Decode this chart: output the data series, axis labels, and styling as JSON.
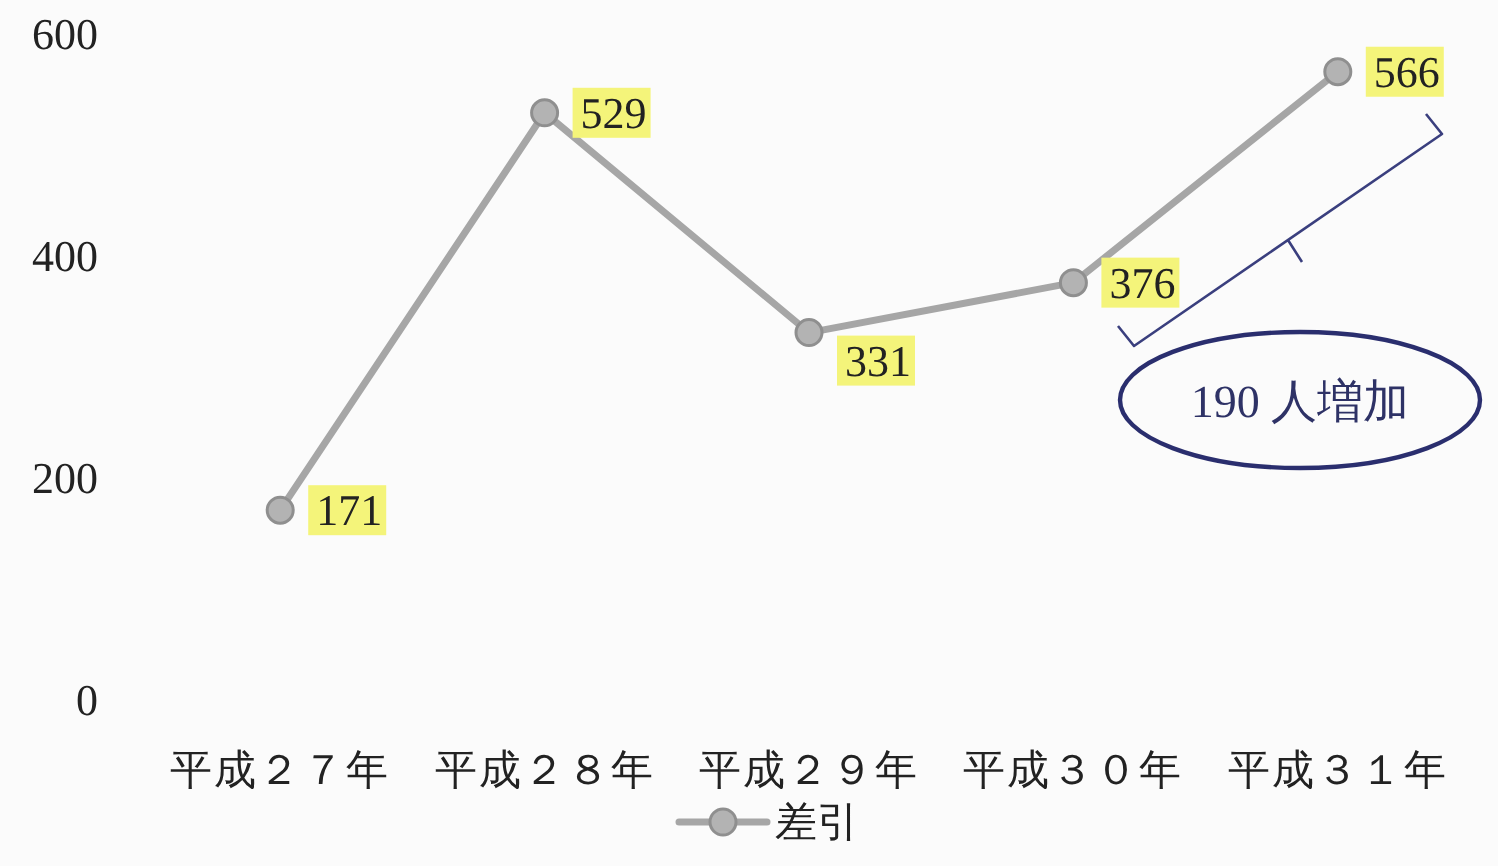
{
  "chart_data": {
    "type": "line",
    "categories": [
      "平成２７年",
      "平成２８年",
      "平成２９年",
      "平成３０年",
      "平成３１年"
    ],
    "series": [
      {
        "name": "差引",
        "color": "#a6a6a6",
        "values": [
          171,
          529,
          331,
          376,
          566
        ]
      }
    ],
    "ylim": [
      0,
      600
    ],
    "yticks": [
      0,
      200,
      400,
      600
    ],
    "grid": false,
    "legend": "bottom",
    "marker": "circle",
    "line_style": "solid",
    "data_labels": true,
    "annotations": [
      "190 人増加"
    ]
  }
}
